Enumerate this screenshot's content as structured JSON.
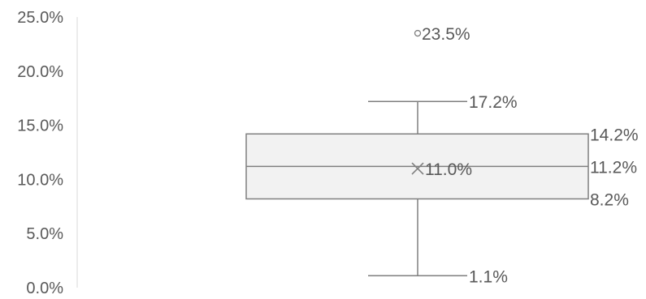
{
  "chart_data": {
    "type": "box",
    "ylim": [
      0,
      25
    ],
    "yticks": [
      {
        "value": 0,
        "label": "0.0%"
      },
      {
        "value": 5,
        "label": "5.0%"
      },
      {
        "value": 10,
        "label": "10.0%"
      },
      {
        "value": 15,
        "label": "15.0%"
      },
      {
        "value": 20,
        "label": "20.0%"
      },
      {
        "value": 25,
        "label": "25.0%"
      }
    ],
    "grid": false,
    "box": {
      "min": 1.1,
      "q1": 8.2,
      "median": 11.2,
      "q3": 14.2,
      "max": 17.2,
      "mean": 11.0,
      "outliers": [
        23.5
      ]
    },
    "data_labels": {
      "min": "1.1%",
      "q1": "8.2%",
      "median": "11.2%",
      "q3": "14.2%",
      "max": "17.2%",
      "mean": "11.0%",
      "outliers": [
        "23.5%"
      ]
    },
    "colors": {
      "box_fill": "#f2f2f2",
      "line": "#7f7f7f",
      "axis": "#d9d9d9",
      "text": "#595959"
    }
  }
}
